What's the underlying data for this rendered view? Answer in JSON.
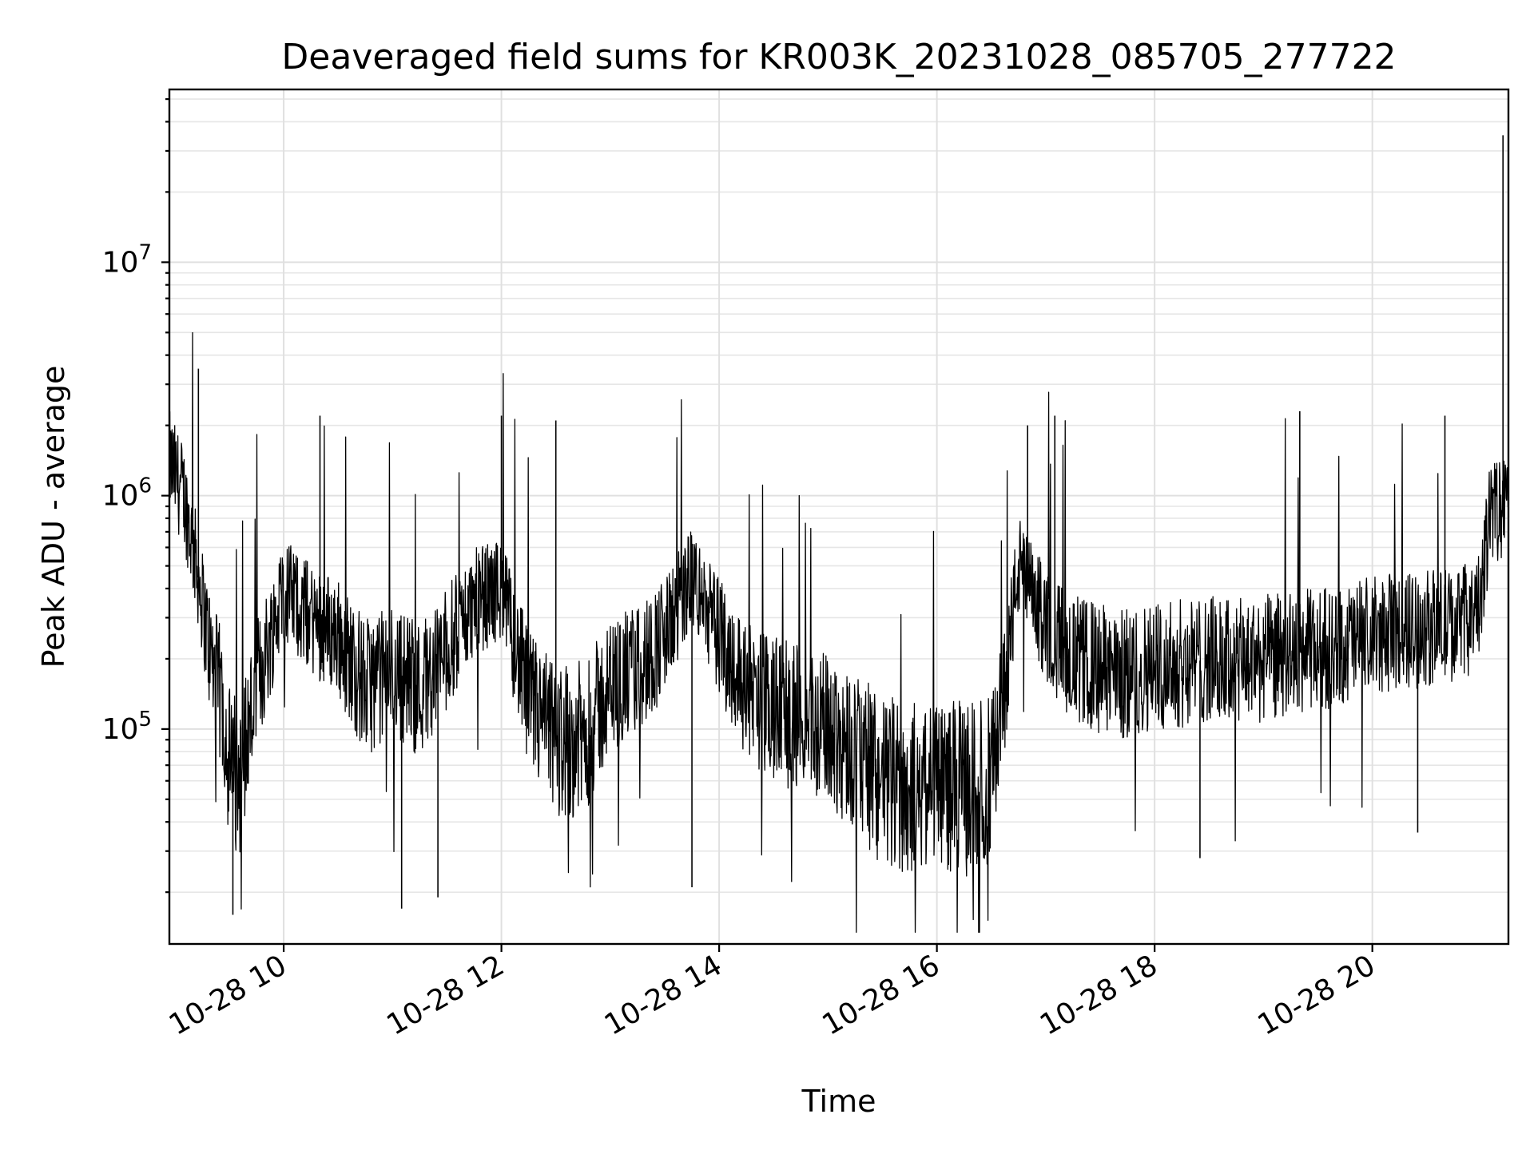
{
  "chart_data": {
    "type": "line",
    "title": "Deaveraged field sums for KR003K_20231028_085705_277722",
    "xlabel": "Time",
    "ylabel": "Peak ADU - average",
    "yscale": "log",
    "grid": true,
    "xlim": [
      "10-28 08:57",
      "10-28 21:15"
    ],
    "ylim": [
      12000,
      55000000
    ],
    "xticks": [
      {
        "value": "10-28 10:00",
        "label": "10-28 10"
      },
      {
        "value": "10-28 12:00",
        "label": "10-28 12"
      },
      {
        "value": "10-28 14:00",
        "label": "10-28 14"
      },
      {
        "value": "10-28 16:00",
        "label": "10-28 16"
      },
      {
        "value": "10-28 18:00",
        "label": "10-28 18"
      },
      {
        "value": "10-28 20:00",
        "label": "10-28 20"
      }
    ],
    "yticks": [
      {
        "value": 100000,
        "base": "10",
        "exp": "5"
      },
      {
        "value": 1000000,
        "base": "10",
        "exp": "6"
      },
      {
        "value": 10000000,
        "base": "10",
        "exp": "7"
      }
    ],
    "series": [
      {
        "color": "#000000",
        "x": [
          "10-28 08:57",
          "10-28 09:05",
          "10-28 09:12",
          "10-28 09:20",
          "10-28 09:27",
          "10-28 09:30",
          "10-28 09:35",
          "10-28 09:45",
          "10-28 10:00",
          "10-28 10:15",
          "10-28 10:30",
          "10-28 10:45",
          "10-28 11:00",
          "10-28 11:15",
          "10-28 11:30",
          "10-28 11:45",
          "10-28 12:00",
          "10-28 12:15",
          "10-28 12:30",
          "10-28 12:45",
          "10-28 13:00",
          "10-28 13:15",
          "10-28 13:30",
          "10-28 13:45",
          "10-28 14:00",
          "10-28 14:15",
          "10-28 14:30",
          "10-28 14:45",
          "10-28 15:00",
          "10-28 15:15",
          "10-28 15:30",
          "10-28 15:45",
          "10-28 16:00",
          "10-28 16:15",
          "10-28 16:30",
          "10-28 16:35",
          "10-28 16:45",
          "10-28 17:00",
          "10-28 17:15",
          "10-28 17:30",
          "10-28 17:45",
          "10-28 18:00",
          "10-28 18:15",
          "10-28 18:30",
          "10-28 18:45",
          "10-28 19:00",
          "10-28 19:15",
          "10-28 19:30",
          "10-28 19:45",
          "10-28 20:00",
          "10-28 20:15",
          "10-28 20:30",
          "10-28 20:45",
          "10-28 20:55",
          "10-28 21:00",
          "10-28 21:05",
          "10-28 21:10",
          "10-28 21:15"
        ],
        "values": [
          1400000,
          1000000,
          500000,
          200000,
          120000,
          70000,
          60000,
          150000,
          400000,
          300000,
          250000,
          150000,
          180000,
          150000,
          220000,
          350000,
          400000,
          130000,
          90000,
          90000,
          150000,
          180000,
          250000,
          450000,
          250000,
          150000,
          120000,
          110000,
          100000,
          80000,
          60000,
          55000,
          60000,
          55000,
          60000,
          110000,
          500000,
          280000,
          200000,
          180000,
          170000,
          190000,
          190000,
          200000,
          190000,
          200000,
          210000,
          220000,
          230000,
          250000,
          260000,
          270000,
          280000,
          300000,
          350000,
          900000,
          850000,
          1000000
        ],
        "peaks": [
          {
            "x": "10-28 09:13",
            "y": 3500000
          },
          {
            "x": "10-28 10:20",
            "y": 2200000
          },
          {
            "x": "10-28 12:00",
            "y": 2200000
          },
          {
            "x": "10-28 12:30",
            "y": 2100000
          },
          {
            "x": "10-28 16:50",
            "y": 2000000
          },
          {
            "x": "10-28 17:05",
            "y": 2200000
          },
          {
            "x": "10-28 19:20",
            "y": 2300000
          },
          {
            "x": "10-28 20:40",
            "y": 2200000
          },
          {
            "x": "10-28 21:12",
            "y": 35000000
          }
        ],
        "dips": [
          {
            "x": "10-28 09:32",
            "y": 16000
          },
          {
            "x": "10-28 11:05",
            "y": 17000
          },
          {
            "x": "10-28 11:25",
            "y": 19000
          },
          {
            "x": "10-28 13:45",
            "y": 21000
          },
          {
            "x": "10-28 18:25",
            "y": 28000
          },
          {
            "x": "10-28 20:25",
            "y": 36000
          }
        ]
      }
    ]
  }
}
